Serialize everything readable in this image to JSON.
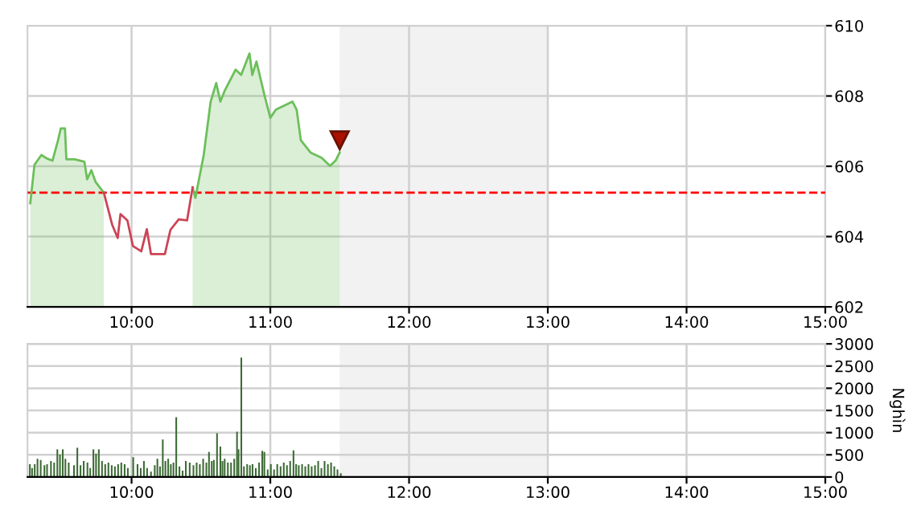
{
  "chart_data": [
    {
      "type": "line",
      "xlim": [
        9.25,
        15
      ],
      "ylim": [
        602,
        610
      ],
      "yticks": [
        602,
        604,
        606,
        608,
        610
      ],
      "xticks": [
        {
          "value": 10,
          "label": "10:00"
        },
        {
          "value": 11,
          "label": "11:00"
        },
        {
          "value": 12,
          "label": "12:00"
        },
        {
          "value": 13,
          "label": "13:00"
        },
        {
          "value": 14,
          "label": "14:00"
        },
        {
          "value": 15,
          "label": "15:00"
        }
      ],
      "grid": true,
      "series": [
        {
          "type": "area",
          "color": "#6cbf5a",
          "x": [
            9.27,
            9.3,
            9.35,
            9.39,
            9.43,
            9.47,
            9.49,
            9.52,
            9.53,
            9.59,
            9.66,
            9.68,
            9.71,
            9.74,
            9.8,
            10.1,
            10.44,
            10.46,
            10.52,
            10.57,
            10.61,
            10.64,
            10.67,
            10.75,
            10.79,
            10.85,
            10.87,
            10.9,
            10.96,
            11.0,
            11.04,
            11.16,
            11.19,
            11.22,
            11.29,
            11.37,
            11.43,
            11.47,
            11.5
          ],
          "values": [
            604.95,
            606.04,
            606.32,
            606.22,
            606.16,
            606.74,
            607.08,
            607.08,
            606.2,
            606.2,
            606.13,
            605.63,
            605.89,
            605.56,
            605.25,
            null,
            605.4,
            605.1,
            606.32,
            607.84,
            608.37,
            607.84,
            608.14,
            608.75,
            608.6,
            609.21,
            608.6,
            608.98,
            607.99,
            607.38,
            607.61,
            607.84,
            607.61,
            606.74,
            606.39,
            606.24,
            606.01,
            606.16,
            606.39
          ]
        },
        {
          "type": "line",
          "color": "#cc4455",
          "x": [
            9.8,
            9.86,
            9.9,
            9.92,
            9.97,
            10.01,
            10.07,
            10.11,
            10.14,
            10.24,
            10.28,
            10.34,
            10.4,
            10.44
          ],
          "values": [
            605.25,
            604.34,
            603.96,
            604.64,
            604.46,
            603.73,
            603.58,
            604.21,
            603.5,
            603.5,
            604.19,
            604.49,
            604.46,
            605.4
          ]
        }
      ],
      "ref_lines": [
        {
          "axis": "y",
          "value": 605.25,
          "color": "#ff0000",
          "line_style": "dashed"
        }
      ],
      "bands": [
        {
          "axis": "x",
          "from": 11.5,
          "to": 13,
          "color": "#f2f2f2"
        }
      ]
    },
    {
      "type": "bar",
      "xlim": [
        9.25,
        15
      ],
      "ylim": [
        0,
        3000
      ],
      "yticks": [
        0,
        500,
        1000,
        1500,
        2000,
        2500,
        3000
      ],
      "xticks": [
        {
          "value": 10,
          "label": "10:00"
        },
        {
          "value": 11,
          "label": "11:00"
        },
        {
          "value": 12,
          "label": "12:00"
        },
        {
          "value": 13,
          "label": "13:00"
        },
        {
          "value": 14,
          "label": "14:00"
        },
        {
          "value": 15,
          "label": "15:00"
        }
      ],
      "ylabel": "Nghìn",
      "grid": true,
      "color": "#3d6b35",
      "x": [
        9.267,
        9.283,
        9.302,
        9.322,
        9.345,
        9.372,
        9.391,
        9.419,
        9.442,
        9.465,
        9.484,
        9.504,
        9.523,
        9.547,
        9.585,
        9.609,
        9.632,
        9.655,
        9.682,
        9.702,
        9.725,
        9.744,
        9.764,
        9.787,
        9.81,
        9.833,
        9.857,
        9.88,
        9.903,
        9.926,
        9.95,
        9.973,
        10.012,
        10.043,
        10.066,
        10.089,
        10.112,
        10.14,
        10.167,
        10.186,
        10.205,
        10.225,
        10.244,
        10.264,
        10.283,
        10.302,
        10.322,
        10.345,
        10.368,
        10.391,
        10.419,
        10.446,
        10.469,
        10.492,
        10.516,
        10.539,
        10.558,
        10.578,
        10.593,
        10.616,
        10.64,
        10.655,
        10.671,
        10.694,
        10.717,
        10.74,
        10.76,
        10.771,
        10.791,
        10.81,
        10.833,
        10.853,
        10.872,
        10.895,
        10.919,
        10.942,
        10.957,
        10.981,
        11.004,
        11.027,
        11.05,
        11.074,
        11.097,
        11.12,
        11.143,
        11.167,
        11.186,
        11.205,
        11.229,
        11.252,
        11.275,
        11.298,
        11.322,
        11.345,
        11.368,
        11.391,
        11.415,
        11.438,
        11.461,
        11.484,
        11.508
      ],
      "values": [
        290,
        200,
        290,
        410,
        385,
        265,
        290,
        360,
        325,
        625,
        505,
        625,
        410,
        325,
        265,
        660,
        265,
        360,
        325,
        200,
        625,
        530,
        625,
        360,
        290,
        325,
        265,
        240,
        290,
        325,
        290,
        200,
        445,
        290,
        200,
        360,
        200,
        120,
        265,
        410,
        240,
        845,
        360,
        410,
        290,
        325,
        1345,
        240,
        145,
        360,
        325,
        265,
        325,
        290,
        410,
        325,
        565,
        360,
        385,
        985,
        685,
        360,
        410,
        325,
        325,
        410,
        1020,
        625,
        2690,
        240,
        290,
        265,
        290,
        200,
        325,
        590,
        565,
        170,
        290,
        170,
        290,
        240,
        325,
        265,
        360,
        600,
        290,
        265,
        290,
        240,
        290,
        240,
        265,
        360,
        200,
        360,
        290,
        325,
        240,
        170,
        85
      ],
      "bands": [
        {
          "axis": "x",
          "from": 11.5,
          "to": 13,
          "color": "#f2f2f2"
        }
      ]
    }
  ]
}
